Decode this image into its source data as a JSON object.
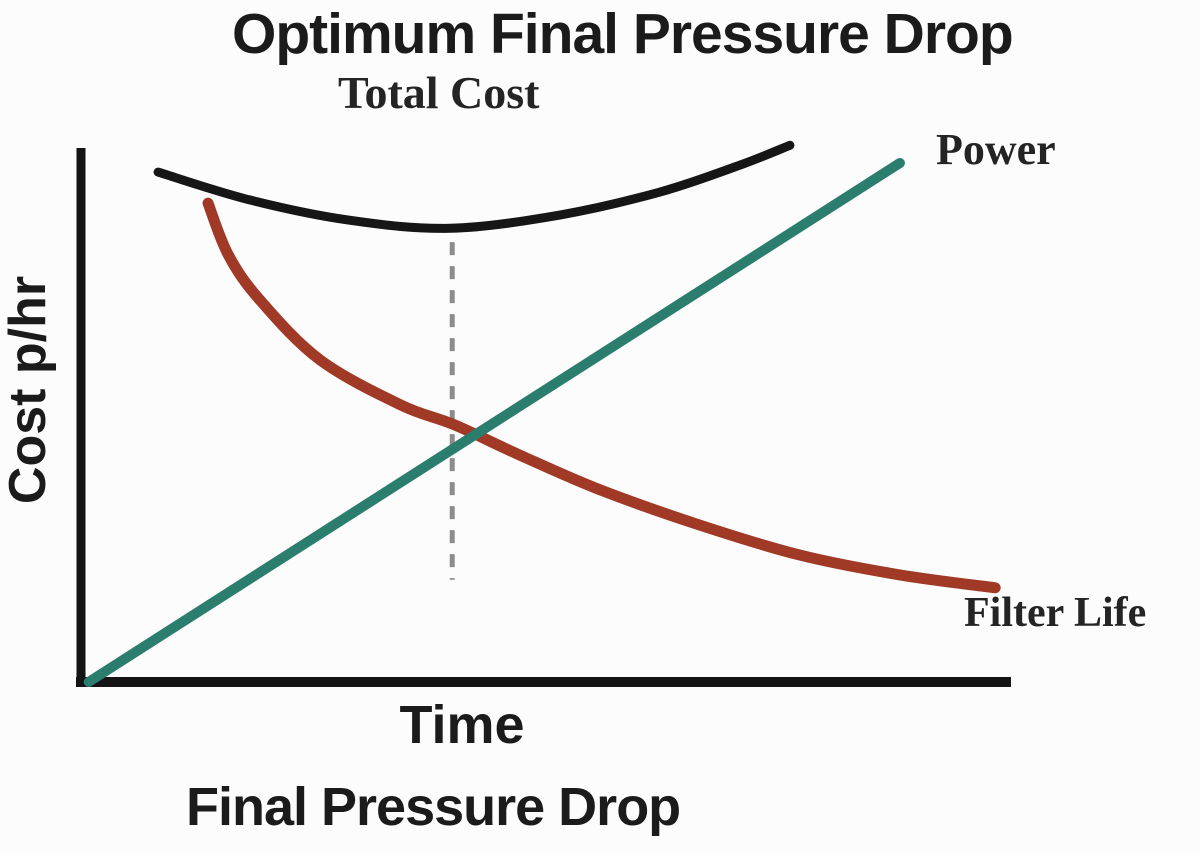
{
  "title": "Optimum Final Pressure Drop",
  "labels": {
    "total_cost": "Total Cost",
    "power": "Power",
    "filter_life": "Filter Life",
    "y_axis": "Cost p/hr",
    "x_axis_primary": "Time",
    "x_axis_secondary": "Final Pressure Drop"
  },
  "colors": {
    "total_cost": "#161616",
    "power": "#2b7e6e",
    "filter_life": "#a03a26",
    "axis": "#141414",
    "optimum_dash": "#8c8c8c",
    "text": "#1b1b1b"
  },
  "chart_data": {
    "type": "line",
    "title": "Optimum Final Pressure Drop",
    "xlabel": "Time / Final Pressure Drop",
    "ylabel": "Cost p/hr",
    "axis_note": "Qualitative diagram: no tick labels; point coordinates are normalized 0-1 fractions of the plotted axis ranges",
    "xlim": [
      0,
      1
    ],
    "ylim": [
      0,
      1
    ],
    "grid": false,
    "legend_position": "inline labels next to curves",
    "series": [
      {
        "id": "total_cost",
        "name": "Total Cost",
        "color": "#161616",
        "stroke_width": 9,
        "shape": "u-shaped curve with minimum at the optimum point",
        "points": [
          {
            "x": 0.079,
            "y": 0.955
          },
          {
            "x": 0.178,
            "y": 0.903
          },
          {
            "x": 0.286,
            "y": 0.865
          },
          {
            "x": 0.395,
            "y": 0.85
          },
          {
            "x": 0.514,
            "y": 0.875
          },
          {
            "x": 0.622,
            "y": 0.918
          },
          {
            "x": 0.708,
            "y": 0.968
          },
          {
            "x": 0.762,
            "y": 1.005
          }
        ]
      },
      {
        "id": "filter_life",
        "name": "Filter Life",
        "color": "#a03a26",
        "stroke_width": 11,
        "shape": "steep hyperbolic decay flattening to the right",
        "points": [
          {
            "x": 0.133,
            "y": 0.897
          },
          {
            "x": 0.155,
            "y": 0.8
          },
          {
            "x": 0.189,
            "y": 0.716
          },
          {
            "x": 0.254,
            "y": 0.604
          },
          {
            "x": 0.341,
            "y": 0.52
          },
          {
            "x": 0.4,
            "y": 0.482
          },
          {
            "x": 0.47,
            "y": 0.426
          },
          {
            "x": 0.557,
            "y": 0.361
          },
          {
            "x": 0.665,
            "y": 0.295
          },
          {
            "x": 0.773,
            "y": 0.239
          },
          {
            "x": 0.881,
            "y": 0.202
          },
          {
            "x": 0.984,
            "y": 0.178
          }
        ]
      },
      {
        "id": "power",
        "name": "Power",
        "color": "#2b7e6e",
        "stroke_width": 10,
        "shape": "straight line rising from origin",
        "points": [
          {
            "x": 0.004,
            "y": 0.002
          },
          {
            "x": 0.881,
            "y": 0.972
          }
        ]
      }
    ],
    "optimum_marker": {
      "description": "vertical dashed line at minimum of Total Cost curve",
      "x": 0.397,
      "y_top": 0.824,
      "y_bottom": 0.193,
      "color": "#8c8c8c",
      "dash": "13 11",
      "stroke_width": 5
    }
  }
}
